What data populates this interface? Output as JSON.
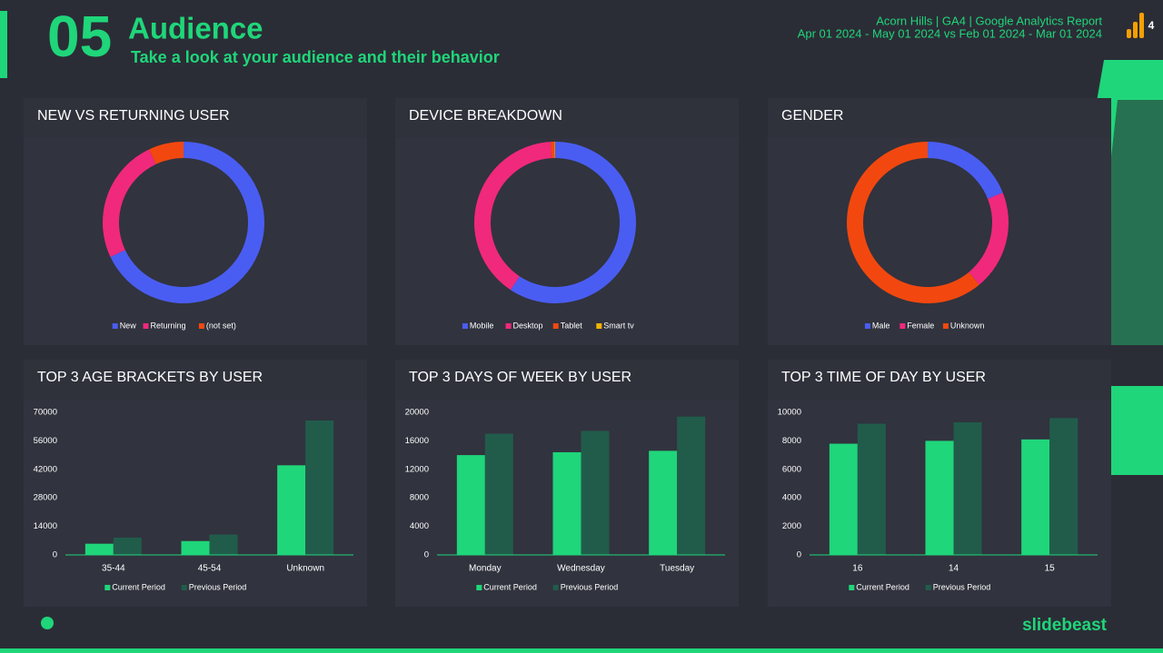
{
  "header": {
    "number": "05",
    "title": "Audience",
    "subtitle": "Take a look at your audience and their behavior",
    "report": "Acorn Hills | GA4 | Google Analytics Report",
    "dates": "Apr 01 2024 - May 01 2024 vs Feb 01 2024 - Mar 01 2024",
    "page": "4",
    "brand": "slidebeast"
  },
  "chart_data": [
    {
      "type": "donut",
      "title": "NEW VS RETURNING USER",
      "categories": [
        "New",
        "Returning",
        "(not set)"
      ],
      "values": [
        68,
        25,
        7
      ],
      "colors": [
        "#4a5df2",
        "#f0297c",
        "#f2480f"
      ]
    },
    {
      "type": "donut",
      "title": "DEVICE BREAKDOWN",
      "categories": [
        "Mobile",
        "Desktop",
        "Tablet",
        "Smart tv"
      ],
      "values": [
        59.3,
        39.8,
        0.8,
        0.1
      ],
      "colors": [
        "#4a5df2",
        "#f0297c",
        "#f2480f",
        "#f5b400"
      ]
    },
    {
      "type": "donut",
      "title": "GENDER",
      "categories": [
        "Male",
        "Female",
        "Unknown"
      ],
      "values": [
        19,
        20,
        61
      ],
      "colors": [
        "#4a5df2",
        "#f0297c",
        "#f2480f"
      ]
    },
    {
      "type": "bar",
      "title": "TOP 3 AGE BRACKETS BY USER",
      "categories": [
        "35-44",
        "45-54",
        "Unknown"
      ],
      "series": [
        {
          "name": "Current Period",
          "color": "#1fd67a",
          "values": [
            5500,
            6800,
            44000
          ]
        },
        {
          "name": "Previous Period",
          "color": "#215c4b",
          "values": [
            8500,
            10000,
            66000
          ]
        }
      ],
      "ylim": [
        0,
        70000
      ],
      "yticks": [
        0,
        14000,
        28000,
        42000,
        56000,
        70000
      ]
    },
    {
      "type": "bar",
      "title": "TOP 3 DAYS OF WEEK BY USER",
      "categories": [
        "Monday",
        "Wednesday",
        "Tuesday"
      ],
      "series": [
        {
          "name": "Current Period",
          "color": "#1fd67a",
          "values": [
            14000,
            14400,
            14600
          ]
        },
        {
          "name": "Previous Period",
          "color": "#215c4b",
          "values": [
            17000,
            17400,
            19400
          ]
        }
      ],
      "ylim": [
        0,
        20000
      ],
      "yticks": [
        0,
        4000,
        8000,
        12000,
        16000,
        20000
      ]
    },
    {
      "type": "bar",
      "title": "TOP 3 TIME OF DAY BY USER",
      "categories": [
        "16",
        "14",
        "15"
      ],
      "series": [
        {
          "name": "Current Period",
          "color": "#1fd67a",
          "values": [
            7800,
            8000,
            8100
          ]
        },
        {
          "name": "Previous Period",
          "color": "#215c4b",
          "values": [
            9200,
            9300,
            9600
          ]
        }
      ],
      "ylim": [
        0,
        10000
      ],
      "yticks": [
        0,
        2000,
        4000,
        6000,
        8000,
        10000
      ]
    }
  ]
}
